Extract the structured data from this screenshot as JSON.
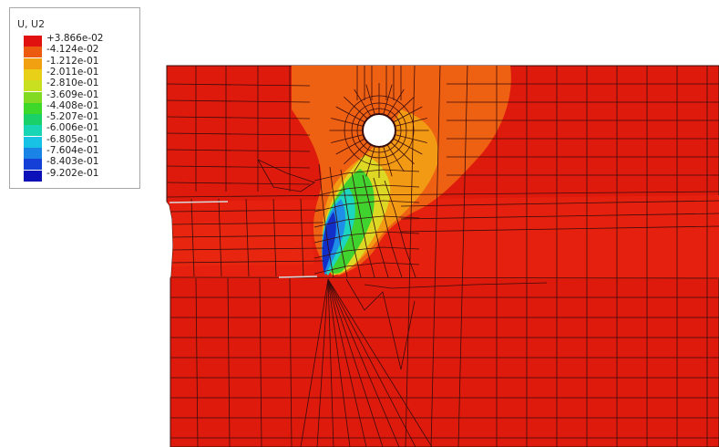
{
  "legend": {
    "title": "U, U2",
    "entries": [
      {
        "label": "+3.866e-02",
        "color": "#e0110f"
      },
      {
        "label": "-4.124e-02",
        "color": "#ec5a10"
      },
      {
        "label": "-1.212e-01",
        "color": "#f0a010"
      },
      {
        "label": "-2.011e-01",
        "color": "#e8d018"
      },
      {
        "label": "-2.810e-01",
        "color": "#c8e020"
      },
      {
        "label": "-3.609e-01",
        "color": "#82da22"
      },
      {
        "label": "-4.408e-01",
        "color": "#3ed82a"
      },
      {
        "label": "-5.207e-01",
        "color": "#1ad068"
      },
      {
        "label": "-6.006e-01",
        "color": "#18d6b4"
      },
      {
        "label": "-6.805e-01",
        "color": "#18c2e4"
      },
      {
        "label": "-7.604e-01",
        "color": "#1a84e6"
      },
      {
        "label": "-8.403e-01",
        "color": "#1440d8"
      },
      {
        "label": "-9.202e-01",
        "color": "#0c10b8"
      }
    ]
  },
  "plot": {
    "mesh_color": "#3a0c0c",
    "base_color": "#de1a0c"
  }
}
